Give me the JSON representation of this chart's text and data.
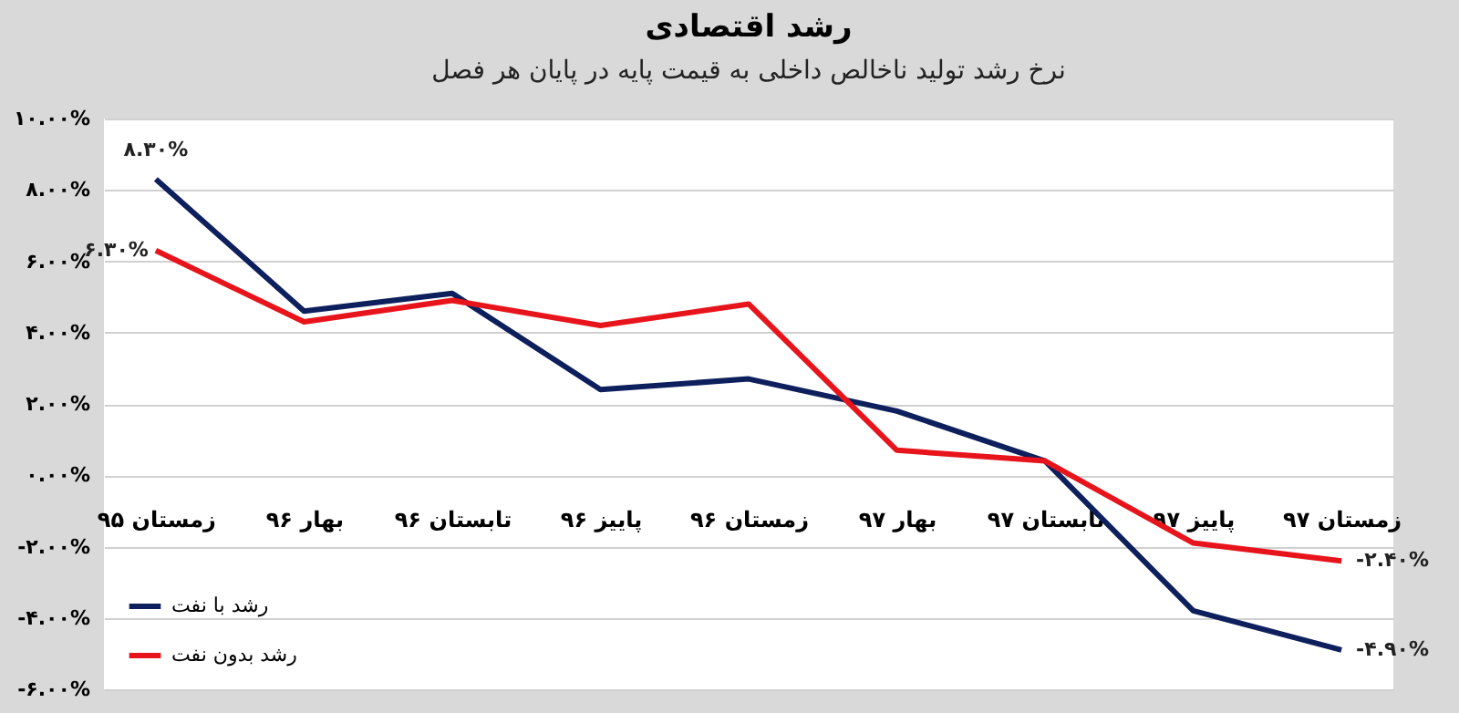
{
  "chart_data": {
    "type": "line",
    "title": "رشد اقتصادی",
    "subtitle": "نرخ رشد تولید ناخالص داخلی به قیمت پایه در پایان هر فصل",
    "categories": [
      "زمستان ۹۵",
      "بهار ۹۶",
      "تابستان ۹۶",
      "پاییز ۹۶",
      "زمستان ۹۶",
      "بهار ۹۷",
      "تابستان ۹۷",
      "پاییز ۹۷",
      "زمستان ۹۷"
    ],
    "series": [
      {
        "name": "رشد با نفت",
        "color": "#0d1f5c",
        "values": [
          8.3,
          4.6,
          5.1,
          2.4,
          2.7,
          1.8,
          0.4,
          -3.8,
          -4.9
        ],
        "value_labels": [
          "۸.۳۰%",
          null,
          null,
          null,
          null,
          null,
          null,
          null,
          "-۴.۹۰%"
        ]
      },
      {
        "name": "رشد بدون نفت",
        "color": "#e8141c",
        "values": [
          6.3,
          4.3,
          4.9,
          4.2,
          4.8,
          0.7,
          0.4,
          -1.9,
          -2.4
        ],
        "value_labels": [
          "۶.۳۰%",
          null,
          null,
          null,
          null,
          null,
          null,
          null,
          "-۲.۴۰%"
        ]
      }
    ],
    "ylim": [
      -6,
      10
    ],
    "yticks": [
      {
        "value": 10,
        "label": "۱۰.۰۰%"
      },
      {
        "value": 8,
        "label": "۸.۰۰%"
      },
      {
        "value": 6,
        "label": "۶.۰۰%"
      },
      {
        "value": 4,
        "label": "۴.۰۰%"
      },
      {
        "value": 2,
        "label": "۲.۰۰%"
      },
      {
        "value": 0,
        "label": "۰.۰۰%"
      },
      {
        "value": -2,
        "label": "-۲.۰۰%"
      },
      {
        "value": -4,
        "label": "-۴.۰۰%"
      },
      {
        "value": -6,
        "label": "-۶.۰۰%"
      }
    ],
    "grid": "y",
    "legend": "bottom left",
    "marker": "none",
    "line_style": "solid"
  }
}
